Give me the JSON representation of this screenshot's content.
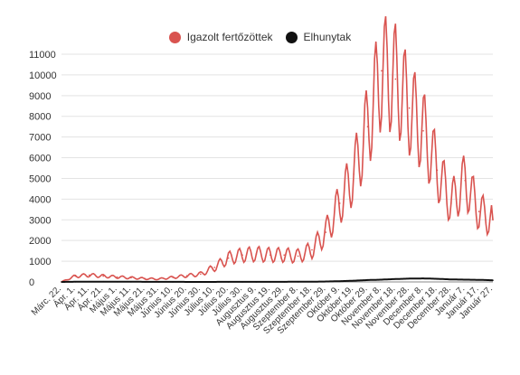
{
  "chart_data": {
    "type": "line",
    "title": "",
    "xlabel": "",
    "ylabel": "",
    "ylim": [
      0,
      11000
    ],
    "yticks": [
      0,
      1000,
      2000,
      3000,
      4000,
      5000,
      6000,
      7000,
      8000,
      9000,
      10000,
      11000
    ],
    "grid": true,
    "legend": "top-center",
    "categories": [
      "Márc. 22.",
      "Ápr. 1.",
      "Ápr. 11.",
      "Ápr. 21.",
      "Május 1.",
      "Május 11.",
      "Május 21.",
      "Május 31.",
      "Június 10.",
      "Június 20.",
      "Június 30.",
      "Július 10.",
      "Július 20.",
      "Július 30.",
      "Augusztus 9.",
      "Augusztus 19.",
      "Augusztus 29.",
      "Szeptember 8.",
      "Szeptember 18.",
      "Szeptember 29.",
      "Október 9.",
      "Október 19.",
      "Október 29.",
      "November 8.",
      "November 18.",
      "November 28.",
      "December 8.",
      "December 18.",
      "December 28.",
      "Január 7.",
      "Január 17.",
      "Január 27."
    ],
    "series": [
      {
        "name": "Igazolt fertőzöttek",
        "color": "#d9534f",
        "values": [
          5,
          280,
          330,
          280,
          240,
          200,
          160,
          140,
          220,
          300,
          380,
          700,
          1150,
          1300,
          1350,
          1300,
          1300,
          1250,
          1550,
          2400,
          3800,
          5200,
          7500,
          10200,
          9800,
          8400,
          7300,
          5400,
          3800,
          4900,
          3400,
          3000
        ]
      },
      {
        "name": "Elhunytak",
        "color": "#111111",
        "values": [
          0,
          8,
          12,
          12,
          10,
          8,
          6,
          4,
          3,
          2,
          2,
          2,
          3,
          4,
          4,
          5,
          6,
          8,
          12,
          20,
          35,
          60,
          90,
          110,
          140,
          160,
          170,
          150,
          120,
          110,
          100,
          80
        ]
      }
    ]
  }
}
